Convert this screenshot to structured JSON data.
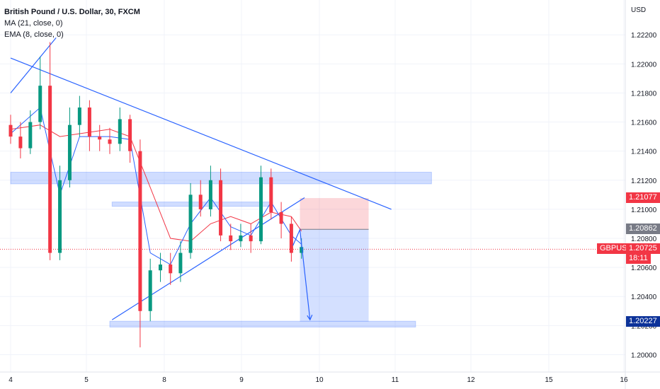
{
  "legend": {
    "title": "British Pound / U.S. Dollar, 30, FXCM",
    "ma": "MA (21, close, 0)",
    "ema": "EMA (8, close, 0)"
  },
  "axis": {
    "currency": "USD"
  },
  "chart_data": {
    "type": "candlestick",
    "symbol": "GBPUSD",
    "ylim": [
      1.199,
      1.2242
    ],
    "y_ticks": [
      "1.22200",
      "1.22000",
      "1.21800",
      "1.21600",
      "1.21400",
      "1.21200",
      "1.21000",
      "1.20800",
      "1.20600",
      "1.20400",
      "1.20200",
      "1.20000"
    ],
    "x_ticks": [
      "4",
      "5",
      "8",
      "9",
      "10",
      "11",
      "12",
      "15",
      "16"
    ],
    "current_price": {
      "label": "GBPUSD",
      "value": "1.20725",
      "countdown": "18:11",
      "color": "#f23645"
    },
    "price_tags": [
      {
        "value": "1.21077",
        "color": "#f23645"
      },
      {
        "value": "1.20862",
        "color": "#787b86"
      },
      {
        "value": "1.20227",
        "color": "#0c3299"
      }
    ],
    "candles": [
      [
        4.0,
        1.2158,
        1.215,
        1.2165,
        1.2145
      ],
      [
        4.13,
        1.215,
        1.2142,
        1.216,
        1.2135
      ],
      [
        4.26,
        1.2142,
        1.216,
        1.2168,
        1.2138
      ],
      [
        4.39,
        1.216,
        1.2185,
        1.2205,
        1.2155
      ],
      [
        4.52,
        1.2185,
        1.207,
        1.2215,
        1.2065
      ],
      [
        4.65,
        1.207,
        1.212,
        1.213,
        1.2065
      ],
      [
        4.78,
        1.212,
        1.2158,
        1.217,
        1.2115
      ],
      [
        4.91,
        1.2158,
        1.217,
        1.2178,
        1.215
      ],
      [
        5.04,
        1.217,
        1.215,
        1.2175,
        1.214
      ],
      [
        5.17,
        1.215,
        1.2148,
        1.2158,
        1.214
      ],
      [
        5.3,
        1.2148,
        1.2145,
        1.2156,
        1.2138
      ],
      [
        5.43,
        1.2145,
        1.2162,
        1.217,
        1.214
      ],
      [
        5.56,
        1.2162,
        1.214,
        1.2165,
        1.2132
      ],
      [
        5.69,
        1.214,
        1.203,
        1.2148,
        1.2005
      ],
      [
        5.82,
        1.203,
        1.2058,
        1.2066,
        1.2023
      ],
      [
        5.95,
        1.2058,
        1.2062,
        1.207,
        1.205
      ],
      [
        6.08,
        1.2062,
        1.2056,
        1.207,
        1.2048
      ],
      [
        6.21,
        1.2056,
        1.207,
        1.2078,
        1.205
      ],
      [
        6.34,
        1.207,
        1.211,
        1.2118,
        1.2066
      ],
      [
        6.47,
        1.211,
        1.21,
        1.212,
        1.2095
      ],
      [
        6.6,
        1.21,
        1.212,
        1.213,
        1.2095
      ],
      [
        6.73,
        1.212,
        1.2082,
        1.2128,
        1.2078
      ],
      [
        6.86,
        1.2082,
        1.2078,
        1.209,
        1.2072
      ],
      [
        6.99,
        1.2078,
        1.2082,
        1.209,
        1.2074
      ],
      [
        7.12,
        1.2082,
        1.2078,
        1.209,
        1.207
      ],
      [
        7.25,
        1.2078,
        1.2122,
        1.213,
        1.2076
      ],
      [
        7.38,
        1.2122,
        1.2098,
        1.2128,
        1.2093
      ],
      [
        7.51,
        1.2098,
        1.209,
        1.2105,
        1.208
      ],
      [
        7.64,
        1.209,
        1.207,
        1.2095,
        1.2064
      ],
      [
        7.77,
        1.207,
        1.2074,
        1.208,
        1.2066
      ]
    ],
    "moving_averages": [
      {
        "name": "MA (21, close, 0)",
        "color": "#f23645",
        "values": [
          [
            4.0,
            1.2155
          ],
          [
            4.39,
            1.2158
          ],
          [
            4.65,
            1.215
          ],
          [
            4.91,
            1.2152
          ],
          [
            5.3,
            1.2155
          ],
          [
            5.56,
            1.215
          ],
          [
            5.82,
            1.2115
          ],
          [
            6.08,
            1.208
          ],
          [
            6.34,
            1.2078
          ],
          [
            6.6,
            1.209
          ],
          [
            6.86,
            1.2095
          ],
          [
            7.12,
            1.209
          ],
          [
            7.38,
            1.2098
          ],
          [
            7.64,
            1.2095
          ],
          [
            7.77,
            1.2085
          ]
        ]
      },
      {
        "name": "EMA (8, close, 0)",
        "color": "#2962ff",
        "values": [
          [
            4.0,
            1.2152
          ],
          [
            4.39,
            1.217
          ],
          [
            4.65,
            1.211
          ],
          [
            4.91,
            1.215
          ],
          [
            5.3,
            1.215
          ],
          [
            5.56,
            1.2148
          ],
          [
            5.82,
            1.207
          ],
          [
            6.08,
            1.2062
          ],
          [
            6.34,
            1.209
          ],
          [
            6.6,
            1.2108
          ],
          [
            6.86,
            1.2088
          ],
          [
            7.12,
            1.2082
          ],
          [
            7.38,
            1.2105
          ],
          [
            7.64,
            1.2082
          ],
          [
            7.77,
            1.2076
          ]
        ]
      }
    ],
    "zones": [
      {
        "x": [
          3.92,
          9.48
        ],
        "y": [
          1.21175,
          1.21255
        ]
      },
      {
        "x": [
          5.33,
          7.4
        ],
        "y": [
          1.2102,
          1.2105
        ]
      },
      {
        "x": [
          5.3,
          9.27
        ],
        "y": [
          1.2019,
          1.2023
        ]
      }
    ],
    "trend_lines": [
      {
        "points": [
          [
            3.9,
            1.218
          ],
          [
            4.6,
            1.2218
          ]
        ]
      },
      {
        "points": [
          [
            3.9,
            1.2204
          ],
          [
            8.95,
            1.21
          ]
        ]
      },
      {
        "points": [
          [
            5.33,
            1.2024
          ],
          [
            7.81,
            1.2108
          ]
        ]
      }
    ],
    "position": {
      "entry": 1.20862,
      "stop": 1.21077,
      "target": 1.20227,
      "x": [
        7.75,
        8.65
      ]
    },
    "projection": [
      [
        7.66,
        1.2075
      ],
      [
        7.75,
        1.2086
      ],
      [
        7.88,
        1.2024
      ]
    ]
  }
}
